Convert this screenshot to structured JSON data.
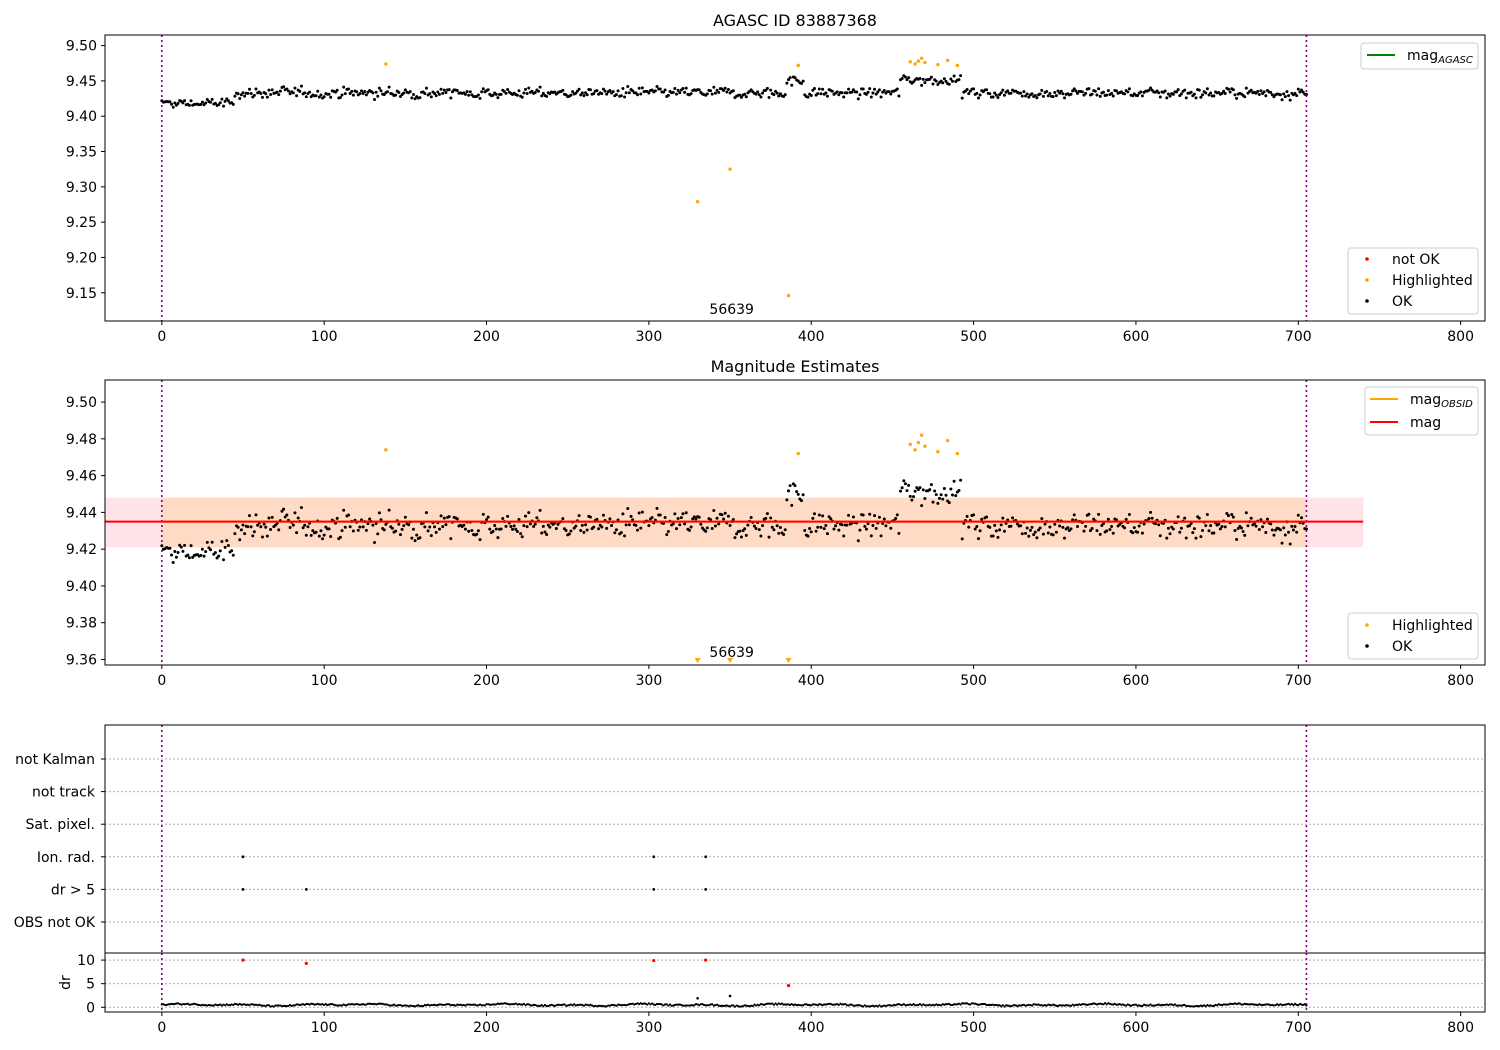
{
  "chart_data": [
    {
      "type": "scatter",
      "title": "AGASC ID 83887368",
      "xlim": [
        -35,
        815
      ],
      "ylim": [
        9.11,
        9.515
      ],
      "xticks": [
        0,
        100,
        200,
        300,
        400,
        500,
        600,
        700,
        800
      ],
      "yticks": [
        9.15,
        9.2,
        9.25,
        9.3,
        9.35,
        9.4,
        9.45,
        9.5
      ],
      "ytick_labels": [
        "9.15",
        "9.20",
        "9.25",
        "9.30",
        "9.35",
        "9.40",
        "9.45",
        "9.50"
      ],
      "vlines": [
        0,
        705
      ],
      "annotation": {
        "text": "56639",
        "x": 351,
        "y": 9.123
      },
      "legend_line": {
        "label": "mag",
        "sub": "AGASC",
        "color": "#008000",
        "position": "upper right"
      },
      "legend_points": {
        "position": "lower right",
        "entries": [
          {
            "label": "not OK",
            "color": "#ff0000"
          },
          {
            "label": "Highlighted",
            "color": "#ffa500"
          },
          {
            "label": "OK",
            "color": "#000000"
          }
        ]
      },
      "series": [
        {
          "name": "OK",
          "color": "#000000",
          "note": "705 points, mag ≈ 9.40–9.47, generated along x = 0–705"
        },
        {
          "name": "Highlighted",
          "color": "#ffa500",
          "points": [
            [
              138,
              9.474
            ],
            [
              330,
              9.279
            ],
            [
              350,
              9.325
            ],
            [
              386,
              9.146
            ],
            [
              392,
              9.472
            ],
            [
              461,
              9.477
            ],
            [
              464,
              9.474
            ],
            [
              466,
              9.478
            ],
            [
              468,
              9.482
            ],
            [
              470,
              9.476
            ],
            [
              478,
              9.473
            ],
            [
              484,
              9.479
            ],
            [
              490,
              9.472
            ]
          ]
        }
      ]
    },
    {
      "type": "scatter",
      "title": "Magnitude Estimates",
      "xlim": [
        -35,
        815
      ],
      "ylim": [
        9.357,
        9.512
      ],
      "xticks": [
        0,
        100,
        200,
        300,
        400,
        500,
        600,
        700,
        800
      ],
      "yticks": [
        9.36,
        9.38,
        9.4,
        9.42,
        9.44,
        9.46,
        9.48,
        9.5
      ],
      "ytick_labels": [
        "9.36",
        "9.38",
        "9.40",
        "9.42",
        "9.44",
        "9.46",
        "9.48",
        "9.50"
      ],
      "vlines": [
        0,
        705
      ],
      "annotation": {
        "text": "56639",
        "x": 351,
        "y": 9.361
      },
      "mag_line": {
        "y": 9.435,
        "x_range": [
          -35,
          740
        ],
        "color": "#ff0000"
      },
      "mag_band": {
        "y_range": [
          9.421,
          9.448
        ],
        "x_range": [
          -35,
          740
        ],
        "color": "#ffc0cb"
      },
      "obsid_line": {
        "y": 9.435,
        "x_range": [
          0,
          705
        ],
        "color": "#ffa500"
      },
      "obsid_band": {
        "y_range": [
          9.421,
          9.448
        ],
        "x_range": [
          0,
          705
        ],
        "color": "#ffd7b8"
      },
      "offscale_markers": [
        330,
        350,
        386
      ],
      "legend_lines": {
        "position": "upper right",
        "entries": [
          {
            "label": "mag",
            "sub": "OBSID",
            "color": "#ffa500"
          },
          {
            "label": "mag",
            "sub": "",
            "color": "#ff0000"
          }
        ]
      },
      "legend_points": {
        "position": "lower right",
        "entries": [
          {
            "label": "Highlighted",
            "color": "#ffa500"
          },
          {
            "label": "OK",
            "color": "#000000"
          }
        ]
      },
      "series": [
        {
          "name": "OK",
          "color": "#000000",
          "note": "same points as above, zoomed"
        },
        {
          "name": "Highlighted",
          "color": "#ffa500",
          "points": [
            [
              138,
              9.474
            ],
            [
              392,
              9.472
            ],
            [
              461,
              9.477
            ],
            [
              464,
              9.474
            ],
            [
              466,
              9.478
            ],
            [
              468,
              9.482
            ],
            [
              470,
              9.476
            ],
            [
              478,
              9.473
            ],
            [
              484,
              9.479
            ],
            [
              490,
              9.472
            ]
          ]
        }
      ]
    },
    {
      "type": "scatter",
      "title": "",
      "xlim": [
        -35,
        815
      ],
      "categories": [
        "not Kalman",
        "not track",
        "Sat. pixel.",
        "Ion. rad.",
        "dr > 5",
        "OBS not OK"
      ],
      "flags": [
        {
          "category": "Ion. rad.",
          "x": [
            50,
            303,
            335
          ]
        },
        {
          "category": "dr > 5",
          "x": [
            50,
            89,
            303,
            335
          ]
        }
      ],
      "vlines": [
        0,
        705
      ]
    },
    {
      "type": "scatter",
      "title": "",
      "ylabel": "dr",
      "xlim": [
        -35,
        815
      ],
      "ylim": [
        -1,
        11.5
      ],
      "xticks": [
        0,
        100,
        200,
        300,
        400,
        500,
        600,
        700,
        800
      ],
      "yticks": [
        0,
        5,
        10
      ],
      "vlines": [
        0,
        705
      ],
      "red_points": [
        [
          50,
          10
        ],
        [
          89,
          9.3
        ],
        [
          303,
          9.9
        ],
        [
          335,
          10
        ],
        [
          386,
          4.6
        ]
      ],
      "black_extra": [
        [
          330,
          1.9
        ],
        [
          350,
          2.4
        ]
      ],
      "baseline_note": "black points near 0–1 for every x = 0–705"
    }
  ]
}
